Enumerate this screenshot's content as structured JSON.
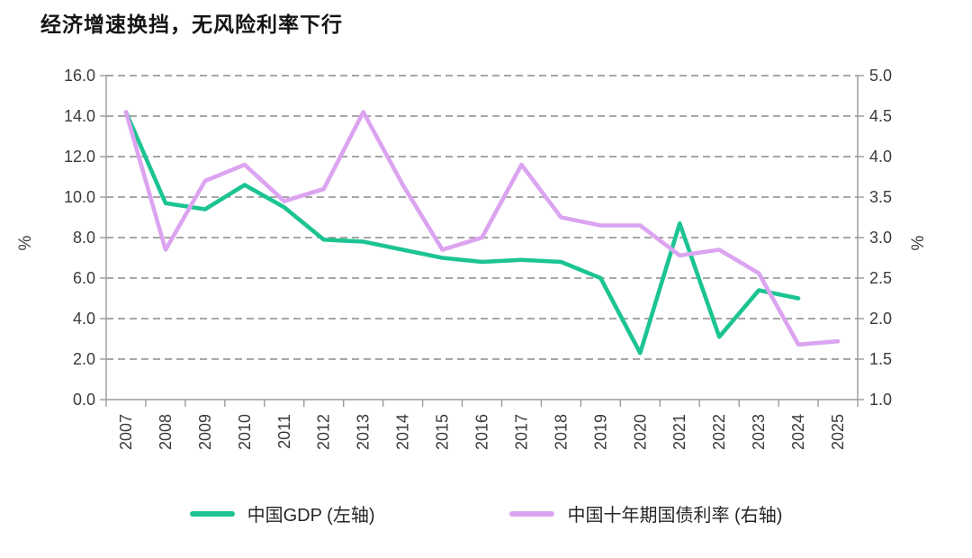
{
  "title": "经济增速换挡，无风险利率下行",
  "chart_data": {
    "type": "line",
    "categories": [
      "2007",
      "2008",
      "2009",
      "2010",
      "2011",
      "2012",
      "2013",
      "2014",
      "2015",
      "2016",
      "2017",
      "2018",
      "2019",
      "2020",
      "2021",
      "2022",
      "2023",
      "2024",
      "2025"
    ],
    "series": [
      {
        "name": "中国GDP (左轴)",
        "axis": "left",
        "color": "#1cc492",
        "values": [
          14.2,
          9.7,
          9.4,
          10.6,
          9.5,
          7.9,
          7.8,
          7.4,
          7.0,
          6.8,
          6.9,
          6.8,
          6.0,
          2.3,
          8.7,
          3.1,
          5.4,
          5.0,
          null
        ]
      },
      {
        "name": "中国十年期国债利率 (右轴)",
        "axis": "right",
        "color": "#dca4f0",
        "values": [
          4.55,
          2.85,
          3.7,
          3.9,
          3.45,
          3.6,
          4.55,
          3.65,
          2.85,
          3.0,
          3.9,
          3.25,
          3.15,
          3.15,
          2.78,
          2.85,
          2.56,
          1.68,
          1.72
        ]
      }
    ],
    "left_axis": {
      "label": "%",
      "min": 0,
      "max": 16,
      "ticks": [
        "0.0",
        "2.0",
        "4.0",
        "6.0",
        "8.0",
        "10.0",
        "12.0",
        "14.0",
        "16.0"
      ]
    },
    "right_axis": {
      "label": "%",
      "min": 1,
      "max": 5,
      "ticks": [
        "1.0",
        "1.5",
        "2.0",
        "2.5",
        "3.0",
        "3.5",
        "4.0",
        "4.5",
        "5.0"
      ]
    },
    "grid": "horizontal-dashed",
    "legend_position": "bottom",
    "colors": {
      "gridline": "#8a8a8a",
      "axis": "#9b9b9b",
      "tick_label": "#3b3b3b",
      "title_text": "#141414",
      "legend_text": "#262626"
    }
  },
  "legend": {
    "items": [
      {
        "label": "中国GDP (左轴)",
        "color": "#1cc492"
      },
      {
        "label": "中国十年期国债利率 (右轴)",
        "color": "#dca4f0"
      }
    ]
  }
}
